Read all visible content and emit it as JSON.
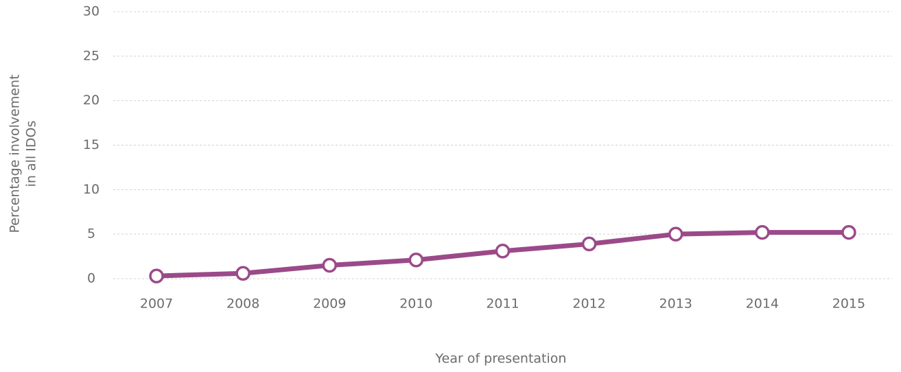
{
  "chart_data": {
    "type": "line",
    "x_label": "Year of presentation",
    "y_label": [
      "Percentage involvement",
      "in all IDOs"
    ],
    "categories": [
      "2007",
      "2008",
      "2009",
      "2010",
      "2011",
      "2012",
      "2013",
      "2014",
      "2015"
    ],
    "series": [
      {
        "name": "Percentage involvement in all IDOs",
        "color": "#9b4a89",
        "values": [
          0.3,
          0.6,
          1.5,
          2.1,
          3.1,
          3.9,
          5.0,
          5.2,
          5.2
        ]
      }
    ],
    "ylim": [
      0,
      30
    ],
    "yticks": [
      0,
      5,
      10,
      15,
      20,
      25,
      30
    ],
    "grid": true
  }
}
